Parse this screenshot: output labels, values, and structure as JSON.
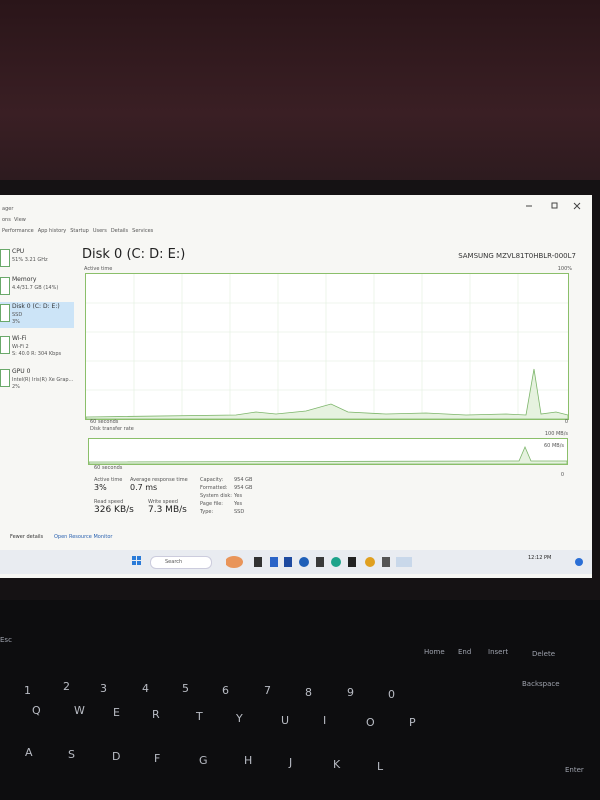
{
  "window": {
    "title": "ager",
    "menu": [
      "ons",
      "View"
    ],
    "tabs": [
      "Performance",
      "App history",
      "Startup",
      "Users",
      "Details",
      "Services"
    ]
  },
  "sidebar": [
    {
      "name": "CPU",
      "detail": "51% 3.21 GHz"
    },
    {
      "name": "Memory",
      "detail": "4.4/31.7 GB (14%)"
    },
    {
      "name": "Disk 0 (C: D: E:)",
      "detail": "SSD",
      "value": "3%"
    },
    {
      "name": "Wi-Fi",
      "detail": "Wi-Fi 2",
      "value": "S: 40.0 R: 304 Kbps"
    },
    {
      "name": "GPU 0",
      "detail": "Intel(R) Iris(R) Xe Grap...",
      "value": "2%"
    }
  ],
  "panel": {
    "title": "Disk 0 (C: D: E:)",
    "model": "SAMSUNG MZVL81T0HBLR-000L7",
    "graph1": {
      "label": "Active time",
      "max": "100%",
      "span": "60 seconds",
      "min": "0"
    },
    "graph2": {
      "label": "Disk transfer rate",
      "max": "100 MB/s",
      "mid": "60 MB/s",
      "span": "60 seconds",
      "min": "0"
    }
  },
  "stats": {
    "main": [
      {
        "label": "Active time",
        "value": "3%"
      },
      {
        "label": "Average response time",
        "value": "0.7 ms"
      },
      {
        "label": "Read speed",
        "value": "326 KB/s"
      },
      {
        "label": "Write speed",
        "value": "7.3 MB/s"
      }
    ],
    "props": [
      {
        "label": "Capacity:",
        "value": "954 GB"
      },
      {
        "label": "Formatted:",
        "value": "954 GB"
      },
      {
        "label": "System disk:",
        "value": "Yes"
      },
      {
        "label": "Page file:",
        "value": "Yes"
      },
      {
        "label": "Type:",
        "value": "SSD"
      }
    ]
  },
  "footer": {
    "fewer": "Fewer details",
    "monitor": "Open Resource Monitor"
  },
  "taskbar": {
    "search": "Search",
    "time": "12:12 PM"
  },
  "keyboard": {
    "keys": [
      "Esc",
      "Home",
      "End",
      "Insert",
      "Delete",
      "1",
      "2",
      "3",
      "4",
      "5",
      "6",
      "7",
      "8",
      "9",
      "0",
      "Backspace",
      "Q",
      "W",
      "E",
      "R",
      "T",
      "Y",
      "U",
      "I",
      "O",
      "P",
      "A",
      "S",
      "D",
      "F",
      "G",
      "H",
      "J",
      "K",
      "L",
      "Enter"
    ]
  }
}
